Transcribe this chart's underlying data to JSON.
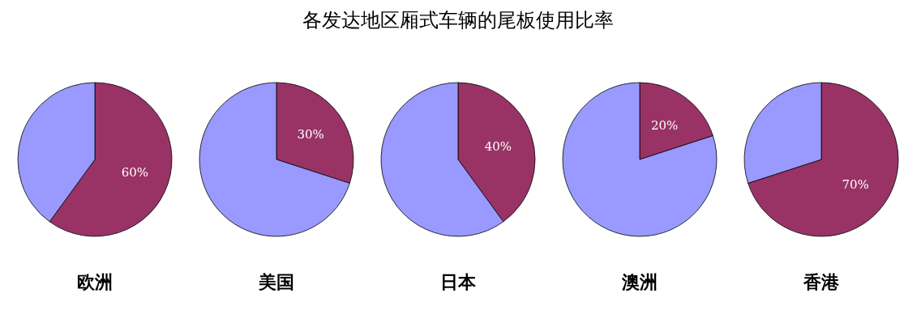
{
  "chart_data": {
    "type": "pie",
    "title": "各发达地区厢式车辆的尾板使用比率",
    "categories": [
      null,
      null
    ],
    "colors": [
      "#993366",
      "#9999ff"
    ],
    "series": [
      {
        "name": "欧洲",
        "values": [
          60,
          40
        ],
        "value_labels": [
          "60%",
          null
        ]
      },
      {
        "name": "美国",
        "values": [
          30,
          70
        ],
        "value_labels": [
          "30%",
          null
        ]
      },
      {
        "name": "日本",
        "values": [
          40,
          60
        ],
        "value_labels": [
          "40%",
          null
        ]
      },
      {
        "name": "澳洲",
        "values": [
          20,
          80
        ],
        "value_labels": [
          "20%",
          null
        ]
      },
      {
        "name": "香港",
        "values": [
          70,
          30
        ],
        "value_labels": [
          "70%",
          null
        ]
      }
    ],
    "legend": false
  }
}
